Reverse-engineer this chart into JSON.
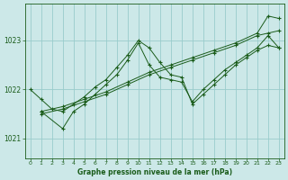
{
  "title": "Graphe pression niveau de la mer (hPa)",
  "bg_color": "#cce8e8",
  "grid_color": "#99cccc",
  "line_color": "#1a5c1a",
  "xlim": [
    -0.5,
    23.5
  ],
  "ylim": [
    1020.6,
    1023.75
  ],
  "yticks": [
    1021,
    1022,
    1023
  ],
  "xticks": [
    0,
    1,
    2,
    3,
    4,
    5,
    6,
    7,
    8,
    9,
    10,
    11,
    12,
    13,
    14,
    15,
    16,
    17,
    18,
    19,
    20,
    21,
    22,
    23
  ],
  "lines": [
    {
      "x": [
        0,
        1,
        2,
        3,
        4,
        5,
        6,
        7,
        8,
        9,
        10,
        11,
        12,
        13,
        14,
        15,
        16,
        17,
        18,
        19,
        20,
        21,
        22,
        23
      ],
      "y": [
        1022.0,
        1021.8,
        1021.6,
        1021.55,
        1021.7,
        1021.85,
        1022.05,
        1022.2,
        1022.45,
        1022.7,
        1023.0,
        1022.85,
        1022.55,
        1022.3,
        1022.25,
        1021.7,
        1021.9,
        1022.1,
        1022.3,
        1022.5,
        1022.65,
        1022.8,
        1022.9,
        1022.85
      ]
    },
    {
      "x": [
        1,
        3,
        4,
        5,
        6,
        7,
        8,
        9,
        10,
        11,
        12,
        13,
        14,
        15,
        16,
        17,
        18,
        19,
        20,
        21,
        22,
        23
      ],
      "y": [
        1021.55,
        1021.2,
        1021.55,
        1021.7,
        1021.9,
        1022.1,
        1022.3,
        1022.6,
        1022.95,
        1022.5,
        1022.25,
        1022.2,
        1022.15,
        1021.75,
        1022.0,
        1022.2,
        1022.4,
        1022.55,
        1022.7,
        1022.85,
        1023.1,
        1022.85
      ]
    },
    {
      "x": [
        1,
        3,
        5,
        7,
        9,
        11,
        13,
        15,
        17,
        19,
        21,
        22,
        23
      ],
      "y": [
        1021.5,
        1021.6,
        1021.75,
        1021.9,
        1022.1,
        1022.3,
        1022.45,
        1022.6,
        1022.75,
        1022.9,
        1023.1,
        1023.15,
        1023.2
      ]
    },
    {
      "x": [
        1,
        3,
        5,
        7,
        9,
        11,
        13,
        15,
        17,
        19,
        21,
        22,
        23
      ],
      "y": [
        1021.55,
        1021.65,
        1021.8,
        1021.95,
        1022.15,
        1022.35,
        1022.5,
        1022.65,
        1022.8,
        1022.95,
        1023.15,
        1023.5,
        1023.45
      ]
    }
  ]
}
